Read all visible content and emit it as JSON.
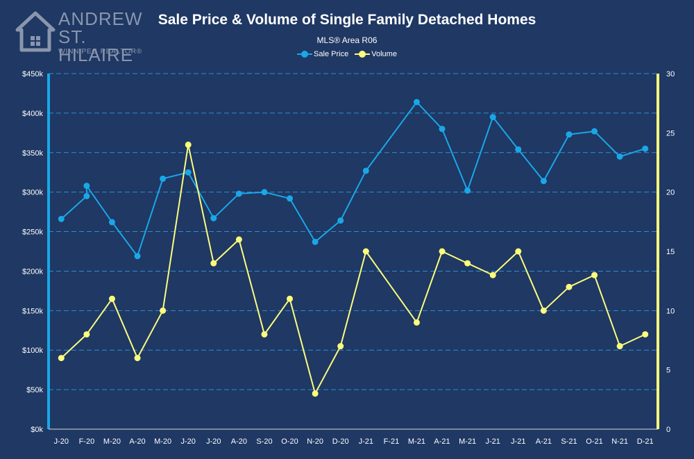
{
  "logo": {
    "line1": "ANDREW",
    "line2": "ST. HILAIRE",
    "line3": "WINNIPEG REALTOR®"
  },
  "colors": {
    "background": "#1f3864",
    "sale_price": "#1aa7e8",
    "volume": "#fdfd7c",
    "grid": "#2f8fd0"
  },
  "chart_data": {
    "type": "line",
    "title": "Sale Price & Volume of Single Family Detached Homes",
    "subtitle": "MLS® Area R06",
    "categories": [
      "J-20",
      "F-20",
      "M-20",
      "A-20",
      "M-20",
      "J-20",
      "J-20",
      "A-20",
      "S-20",
      "O-20",
      "N-20",
      "D-20",
      "J-21",
      "F-21",
      "M-21",
      "A-21",
      "M-21",
      "J-21",
      "J-21",
      "A-21",
      "S-21",
      "O-21",
      "N-21",
      "D-21"
    ],
    "grid": true,
    "legend_position": "top-center",
    "y_left": {
      "min": 0,
      "max": 450000,
      "step": 50000,
      "ticks": [
        "$0k",
        "$50k",
        "$100k",
        "$150k",
        "$200k",
        "$250k",
        "$300k",
        "$350k",
        "$400k",
        "$450k"
      ]
    },
    "y_right": {
      "min": 0,
      "max": 30,
      "step": 5,
      "ticks": [
        "0",
        "5",
        "10",
        "15",
        "20",
        "25",
        "30"
      ]
    },
    "series": [
      {
        "name": "Sale Price",
        "axis": "left",
        "color": "#1aa7e8",
        "points": [
          {
            "i": 0,
            "y": 266000
          },
          {
            "i": 1,
            "y": 295000
          },
          {
            "i": 1,
            "y": 308000
          },
          {
            "i": 2,
            "y": 262000
          },
          {
            "i": 3,
            "y": 219000
          },
          {
            "i": 4,
            "y": 317000
          },
          {
            "i": 5,
            "y": 325000
          },
          {
            "i": 6,
            "y": 267000
          },
          {
            "i": 7,
            "y": 298000
          },
          {
            "i": 8,
            "y": 300000
          },
          {
            "i": 9,
            "y": 292000
          },
          {
            "i": 10,
            "y": 237000
          },
          {
            "i": 11,
            "y": 264000
          },
          {
            "i": 12,
            "y": 327000
          },
          {
            "i": 14,
            "y": 414000
          },
          {
            "i": 15,
            "y": 380000
          },
          {
            "i": 16,
            "y": 302000
          },
          {
            "i": 17,
            "y": 395000
          },
          {
            "i": 18,
            "y": 354000
          },
          {
            "i": 19,
            "y": 314000
          },
          {
            "i": 20,
            "y": 373000
          },
          {
            "i": 21,
            "y": 377000
          },
          {
            "i": 22,
            "y": 345000
          },
          {
            "i": 23,
            "y": 355000
          }
        ]
      },
      {
        "name": "Volume",
        "axis": "right",
        "color": "#fdfd7c",
        "points": [
          {
            "i": 0,
            "y": 6
          },
          {
            "i": 1,
            "y": 8
          },
          {
            "i": 2,
            "y": 11
          },
          {
            "i": 3,
            "y": 6
          },
          {
            "i": 4,
            "y": 10
          },
          {
            "i": 5,
            "y": 24
          },
          {
            "i": 6,
            "y": 14
          },
          {
            "i": 7,
            "y": 16
          },
          {
            "i": 8,
            "y": 8
          },
          {
            "i": 9,
            "y": 11
          },
          {
            "i": 10,
            "y": 3
          },
          {
            "i": 11,
            "y": 7
          },
          {
            "i": 12,
            "y": 15
          },
          {
            "i": 14,
            "y": 9
          },
          {
            "i": 15,
            "y": 15
          },
          {
            "i": 16,
            "y": 14
          },
          {
            "i": 17,
            "y": 13
          },
          {
            "i": 18,
            "y": 15
          },
          {
            "i": 19,
            "y": 10
          },
          {
            "i": 20,
            "y": 12
          },
          {
            "i": 21,
            "y": 13
          },
          {
            "i": 22,
            "y": 7
          },
          {
            "i": 23,
            "y": 8
          }
        ]
      }
    ]
  }
}
